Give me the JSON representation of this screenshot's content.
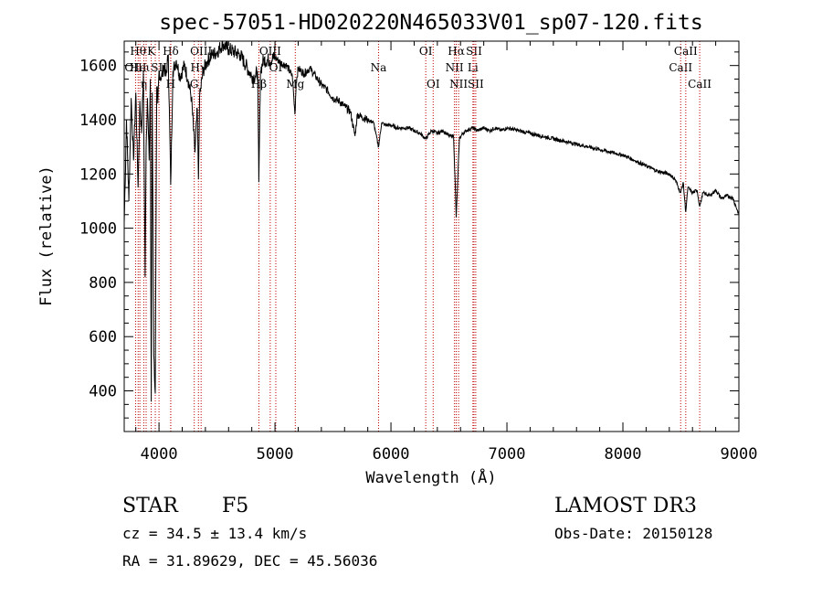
{
  "chart_data": {
    "type": "line",
    "title": "spec-57051-HD020220N465033V01_sp07-120.fits",
    "xlabel": "Wavelength (Å)",
    "ylabel": "Flux (relative)",
    "xlim": [
      3700,
      9000
    ],
    "ylim": [
      250,
      1690
    ],
    "x_ticks": [
      4000,
      5000,
      6000,
      7000,
      8000,
      9000
    ],
    "y_ticks": [
      400,
      600,
      800,
      1000,
      1200,
      1400,
      1600
    ],
    "grid": false,
    "series": [
      {
        "x": [
          3700,
          3720,
          3740,
          3760,
          3780,
          3800,
          3820,
          3835,
          3850,
          3865,
          3880,
          3889,
          3900,
          3915,
          3925,
          3933,
          3942,
          3955,
          3968,
          3980,
          3990,
          4000,
          4020,
          4040,
          4060,
          4080,
          4101,
          4120,
          4150,
          4180,
          4220,
          4250,
          4280,
          4310,
          4330,
          4340,
          4350,
          4380,
          4420,
          4460,
          4500,
          4550,
          4600,
          4650,
          4700,
          4750,
          4800,
          4830,
          4850,
          4861,
          4875,
          4900,
          4950,
          5000,
          5050,
          5100,
          5150,
          5172,
          5183,
          5200,
          5250,
          5300,
          5350,
          5400,
          5450,
          5500,
          5550,
          5600,
          5650,
          5690,
          5710,
          5750,
          5800,
          5850,
          5893,
          5920,
          5950,
          6000,
          6050,
          6100,
          6150,
          6200,
          6250,
          6300,
          6350,
          6400,
          6450,
          6500,
          6540,
          6563,
          6590,
          6620,
          6650,
          6700,
          6750,
          6800,
          6850,
          6900,
          6950,
          7000,
          7100,
          7200,
          7300,
          7400,
          7500,
          7600,
          7700,
          7800,
          7900,
          8000,
          8100,
          8200,
          8300,
          8400,
          8450,
          8498,
          8520,
          8542,
          8560,
          8600,
          8640,
          8662,
          8690,
          8750,
          8800,
          8850,
          8900,
          8950,
          9000
        ],
        "values": [
          1020,
          1400,
          1100,
          1480,
          1250,
          1500,
          1150,
          1470,
          1350,
          1580,
          820,
          1300,
          1480,
          1250,
          1550,
          360,
          1500,
          530,
          390,
          1520,
          1460,
          1580,
          1550,
          1600,
          1560,
          1640,
          1160,
          1580,
          1620,
          1560,
          1600,
          1550,
          1480,
          1280,
          1440,
          1180,
          1480,
          1580,
          1620,
          1640,
          1650,
          1680,
          1660,
          1650,
          1640,
          1600,
          1560,
          1560,
          1580,
          1170,
          1580,
          1620,
          1620,
          1630,
          1610,
          1600,
          1560,
          1420,
          1540,
          1590,
          1570,
          1590,
          1560,
          1530,
          1510,
          1480,
          1470,
          1450,
          1430,
          1340,
          1420,
          1410,
          1400,
          1390,
          1300,
          1390,
          1380,
          1380,
          1370,
          1370,
          1370,
          1360,
          1350,
          1330,
          1360,
          1350,
          1360,
          1340,
          1340,
          1040,
          1330,
          1350,
          1360,
          1370,
          1360,
          1370,
          1360,
          1370,
          1360,
          1370,
          1360,
          1350,
          1340,
          1330,
          1320,
          1310,
          1300,
          1290,
          1280,
          1270,
          1250,
          1230,
          1210,
          1200,
          1180,
          1130,
          1170,
          1060,
          1150,
          1130,
          1140,
          1080,
          1130,
          1120,
          1140,
          1110,
          1120,
          1110,
          1050
        ]
      }
    ],
    "line_markers": [
      {
        "x": 3798,
        "label": "OIII",
        "row": 1
      },
      {
        "x": 3820,
        "label": "Hθ",
        "row": 0
      },
      {
        "x": 3835,
        "label": "Heι",
        "row": 1
      },
      {
        "x": 3869,
        "label": "η",
        "row": 2
      },
      {
        "x": 3889,
        "label": "",
        "row": 1
      },
      {
        "x": 3933,
        "label": "K",
        "row": 0
      },
      {
        "x": 3968,
        "label": "",
        "row": 0
      },
      {
        "x": 4000,
        "label": "SII",
        "row": 1
      },
      {
        "x": 4101,
        "label": "Hδ",
        "row": 0
      },
      {
        "x": 4101,
        "label": "H",
        "row": 2
      },
      {
        "x": 4304,
        "label": "G",
        "row": 2
      },
      {
        "x": 4340,
        "label": "Hγ",
        "row": 1
      },
      {
        "x": 4363,
        "label": "OIII",
        "row": 0
      },
      {
        "x": 4861,
        "label": "Hβ",
        "row": 2
      },
      {
        "x": 4959,
        "label": "OIII",
        "row": 0
      },
      {
        "x": 5007,
        "label": "OI",
        "row": 1
      },
      {
        "x": 5175,
        "label": "Mg",
        "row": 2
      },
      {
        "x": 5893,
        "label": "Na",
        "row": 1
      },
      {
        "x": 6300,
        "label": "OI",
        "row": 0
      },
      {
        "x": 6364,
        "label": "OI",
        "row": 2
      },
      {
        "x": 6548,
        "label": "NII",
        "row": 1
      },
      {
        "x": 6563,
        "label": "Hα",
        "row": 0
      },
      {
        "x": 6583,
        "label": "NII",
        "row": 2
      },
      {
        "x": 6707,
        "label": "Li",
        "row": 1
      },
      {
        "x": 6716,
        "label": "SII",
        "row": 0
      },
      {
        "x": 6731,
        "label": "SII",
        "row": 2
      },
      {
        "x": 8498,
        "label": "CaII",
        "row": 1
      },
      {
        "x": 8542,
        "label": "CaII",
        "row": 0
      },
      {
        "x": 8662,
        "label": "CaII",
        "row": 2
      }
    ],
    "colors": {
      "spectrum": "#000000",
      "line_markers": "#c00000"
    }
  },
  "info": {
    "object_class": "STAR",
    "subclass": "F5",
    "survey": "LAMOST DR3",
    "redshift": "cz = 34.5 ± 13.4 km/s",
    "obs_date": "Obs-Date: 20150128",
    "coords": "RA =  31.89629, DEC =  45.56036"
  }
}
